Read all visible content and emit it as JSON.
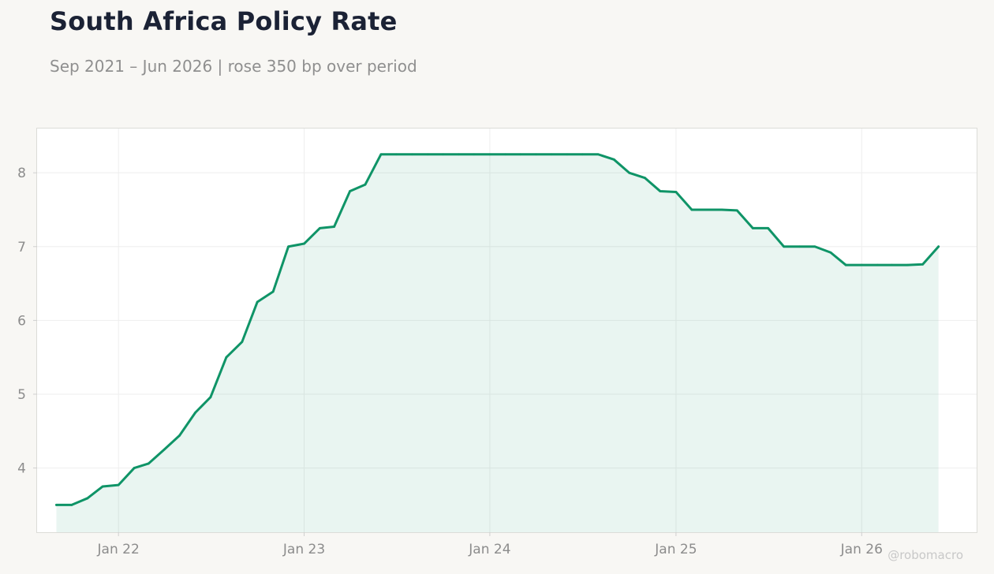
{
  "header": {
    "title": "South Africa Policy Rate",
    "subtitle": "Sep 2021 – Jun 2026 | rose 350 bp over period"
  },
  "credit": "@robomacro",
  "colors": {
    "line": "#0f9467",
    "fill": "#0f9467",
    "background": "#f8f7f4",
    "plot_background": "#ffffff",
    "grid": "#eeeeee",
    "title": "#1b2235",
    "subtitle": "#8f8f8f"
  },
  "chart_data": {
    "type": "area",
    "title": "South Africa Policy Rate",
    "subtitle": "Sep 2021 – Jun 2026 | rose 350 bp over period",
    "xlabel": "",
    "ylabel": "",
    "grid": true,
    "legend": "none",
    "xlim": [
      "2021-07-25",
      "2026-08-15"
    ],
    "ylim": [
      3.13,
      8.6
    ],
    "x_ticks": [
      "2022-01-01",
      "2023-01-01",
      "2024-01-01",
      "2025-01-01",
      "2026-01-01"
    ],
    "x_tick_labels": [
      "Jan 22",
      "Jan 23",
      "Jan 24",
      "Jan 25",
      "Jan 26"
    ],
    "y_ticks": [
      4,
      5,
      6,
      7,
      8
    ],
    "y_tick_labels": [
      "4",
      "5",
      "6",
      "7",
      "8"
    ],
    "series": [
      {
        "x": [
          "2021-09-01",
          "2021-10-01",
          "2021-11-01",
          "2021-12-01",
          "2022-01-01",
          "2022-02-01",
          "2022-03-01",
          "2022-04-01",
          "2022-05-01",
          "2022-06-01",
          "2022-07-01",
          "2022-08-01",
          "2022-09-01",
          "2022-10-01",
          "2022-11-01",
          "2022-12-01",
          "2023-01-01",
          "2023-02-01",
          "2023-03-01",
          "2023-04-01",
          "2023-05-01",
          "2023-06-01",
          "2023-07-01",
          "2023-08-01",
          "2023-09-01",
          "2023-10-01",
          "2023-11-01",
          "2023-12-01",
          "2024-01-01",
          "2024-02-01",
          "2024-03-01",
          "2024-04-01",
          "2024-05-01",
          "2024-06-01",
          "2024-07-01",
          "2024-08-01",
          "2024-09-01",
          "2024-10-01",
          "2024-11-01",
          "2024-12-01",
          "2025-01-01",
          "2025-02-01",
          "2025-03-01",
          "2025-04-01",
          "2025-05-01",
          "2025-06-01",
          "2025-07-01",
          "2025-08-01",
          "2025-09-01",
          "2025-10-01",
          "2025-11-01",
          "2025-12-01",
          "2026-01-01",
          "2026-02-01",
          "2026-03-01",
          "2026-04-01",
          "2026-05-01",
          "2026-06-01"
        ],
        "values": [
          3.5,
          3.5,
          3.59,
          3.75,
          3.77,
          4.0,
          4.06,
          4.25,
          4.44,
          4.75,
          4.96,
          5.5,
          5.71,
          6.25,
          6.39,
          7.0,
          7.04,
          7.25,
          7.27,
          7.75,
          7.84,
          8.25,
          8.25,
          8.25,
          8.25,
          8.25,
          8.25,
          8.25,
          8.25,
          8.25,
          8.25,
          8.25,
          8.25,
          8.25,
          8.25,
          8.25,
          8.18,
          8.0,
          7.93,
          7.75,
          7.74,
          7.5,
          7.5,
          7.5,
          7.49,
          7.25,
          7.25,
          7.0,
          7.0,
          7.0,
          6.92,
          6.75,
          6.75,
          6.75,
          6.75,
          6.75,
          6.76,
          7.0
        ]
      }
    ]
  }
}
